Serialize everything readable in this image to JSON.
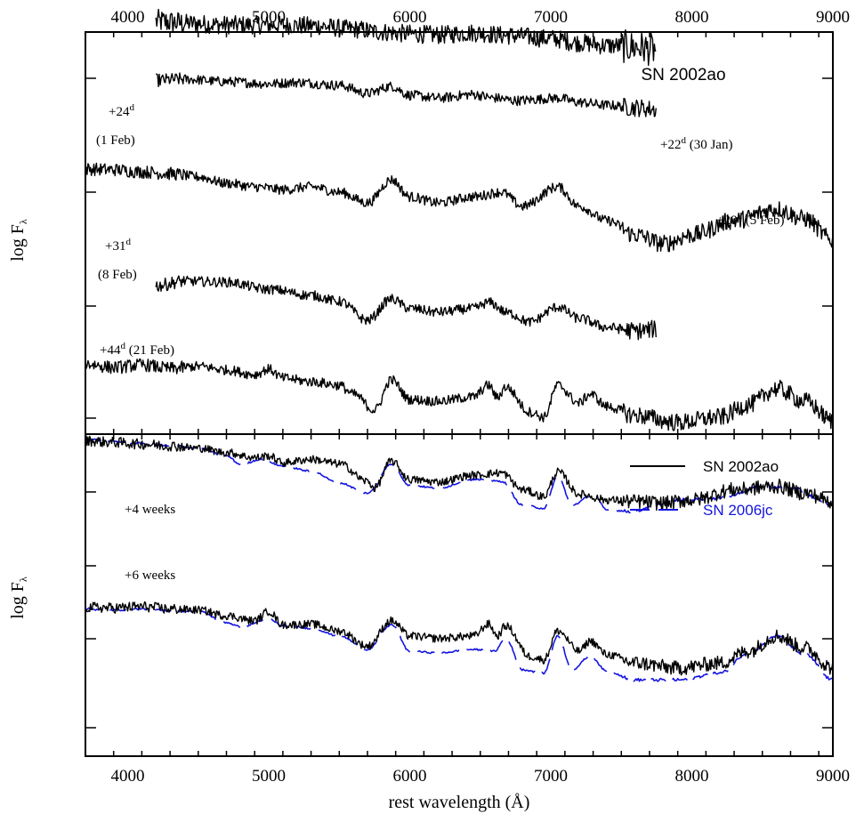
{
  "chart_data": [
    {
      "type": "line",
      "panel": "top",
      "xlabel": "rest wavelength (Å)",
      "ylabel": "log F",
      "ylabel_sub": "λ",
      "xlim": [
        3700,
        9000
      ],
      "x_ticks": [
        4000,
        5000,
        6000,
        7000,
        8000,
        9000
      ],
      "title": "SN 2002ao",
      "series": [
        {
          "epoch": "+24",
          "sup": "d",
          "date": "(1 Feb)",
          "range": [
            4200,
            7750
          ],
          "points": [
            [
              4200,
              2.6
            ],
            [
              4400,
              2.55
            ],
            [
              4700,
              2.5
            ],
            [
              5000,
              2.5
            ],
            [
              5300,
              2.48
            ],
            [
              5600,
              2.38
            ],
            [
              5800,
              2.3
            ],
            [
              6000,
              2.25
            ],
            [
              6200,
              2.22
            ],
            [
              6450,
              2.28
            ],
            [
              6700,
              2.2
            ],
            [
              7000,
              2.12
            ],
            [
              7200,
              2.0
            ],
            [
              7400,
              1.92
            ],
            [
              7600,
              1.88
            ],
            [
              7750,
              1.8
            ]
          ]
        },
        {
          "epoch": "+22",
          "sup": "d",
          "date": "(30 Jan)",
          "range": [
            4200,
            7750
          ],
          "points": [
            [
              4200,
              2.12
            ],
            [
              4400,
              2.15
            ],
            [
              4700,
              2.08
            ],
            [
              5000,
              2.02
            ],
            [
              5200,
              2.06
            ],
            [
              5500,
              1.98
            ],
            [
              5700,
              1.75
            ],
            [
              5870,
              1.95
            ],
            [
              6000,
              1.7
            ],
            [
              6200,
              1.62
            ],
            [
              6450,
              1.72
            ],
            [
              6600,
              1.62
            ],
            [
              6750,
              1.55
            ],
            [
              7050,
              1.62
            ],
            [
              7200,
              1.5
            ],
            [
              7400,
              1.42
            ],
            [
              7600,
              1.35
            ],
            [
              7750,
              1.3
            ]
          ]
        },
        {
          "epoch": "+28",
          "sup": "d",
          "date": "(5 Feb)",
          "range": [
            3700,
            9000
          ],
          "points": [
            [
              3700,
              1.0
            ],
            [
              3900,
              0.98
            ],
            [
              4100,
              0.92
            ],
            [
              4300,
              0.87
            ],
            [
              4500,
              0.78
            ],
            [
              4700,
              0.6
            ],
            [
              4900,
              0.5
            ],
            [
              5100,
              0.42
            ],
            [
              5300,
              0.5
            ],
            [
              5500,
              0.35
            ],
            [
              5700,
              0.05
            ],
            [
              5870,
              0.7
            ],
            [
              6000,
              0.22
            ],
            [
              6200,
              0.05
            ],
            [
              6450,
              0.22
            ],
            [
              6650,
              0.35
            ],
            [
              6800,
              -0.05
            ],
            [
              7050,
              0.5
            ],
            [
              7200,
              -0.05
            ],
            [
              7400,
              -0.45
            ],
            [
              7600,
              -0.85
            ],
            [
              7800,
              -1.1
            ],
            [
              8000,
              -0.85
            ],
            [
              8300,
              -0.45
            ],
            [
              8600,
              -0.12
            ],
            [
              8800,
              -0.4
            ],
            [
              9000,
              -1.0
            ]
          ]
        },
        {
          "epoch": "+31",
          "sup": "d",
          "date": "(8 Feb)",
          "range": [
            4200,
            7750
          ],
          "points": [
            [
              4200,
              -0.08
            ],
            [
              4400,
              0.05
            ],
            [
              4700,
              0.02
            ],
            [
              5000,
              -0.18
            ],
            [
              5300,
              -0.35
            ],
            [
              5500,
              -0.52
            ],
            [
              5700,
              -1.05
            ],
            [
              5870,
              -0.45
            ],
            [
              6000,
              -0.72
            ],
            [
              6200,
              -0.82
            ],
            [
              6450,
              -0.72
            ],
            [
              6560,
              -0.55
            ],
            [
              6700,
              -0.85
            ],
            [
              6850,
              -1.1
            ],
            [
              7050,
              -0.68
            ],
            [
              7200,
              -1.0
            ],
            [
              7400,
              -1.25
            ],
            [
              7600,
              -1.35
            ],
            [
              7750,
              -1.3
            ]
          ]
        },
        {
          "epoch": "+44",
          "sup": "d",
          "date": "(21 Feb)",
          "range": [
            3700,
            9000
          ],
          "points": [
            [
              3700,
              -0.85
            ],
            [
              3900,
              -0.95
            ],
            [
              4100,
              -0.88
            ],
            [
              4300,
              -0.98
            ],
            [
              4500,
              -0.92
            ],
            [
              4700,
              -1.02
            ],
            [
              4900,
              -1.15
            ],
            [
              5000,
              -1.0
            ],
            [
              5100,
              -1.25
            ],
            [
              5300,
              -1.35
            ],
            [
              5500,
              -1.45
            ],
            [
              5600,
              -1.7
            ],
            [
              5750,
              -2.15
            ],
            [
              5870,
              -1.3
            ],
            [
              6000,
              -1.85
            ],
            [
              6200,
              -1.9
            ],
            [
              6450,
              -1.78
            ],
            [
              6560,
              -1.45
            ],
            [
              6620,
              -1.8
            ],
            [
              6680,
              -1.5
            ],
            [
              6850,
              -2.2
            ],
            [
              6950,
              -2.35
            ],
            [
              7050,
              -1.45
            ],
            [
              7200,
              -1.95
            ],
            [
              7280,
              -1.7
            ],
            [
              7400,
              -2.05
            ],
            [
              7600,
              -2.3
            ],
            [
              7900,
              -2.5
            ],
            [
              8200,
              -2.35
            ],
            [
              8400,
              -2.0
            ],
            [
              8600,
              -1.55
            ],
            [
              8800,
              -1.9
            ],
            [
              9000,
              -2.45
            ]
          ]
        }
      ]
    },
    {
      "type": "line",
      "panel": "bottom",
      "xlabel": "rest wavelength (Å)",
      "ylabel": "log F",
      "ylabel_sub": "λ",
      "xlim": [
        3700,
        9000
      ],
      "x_ticks": [
        4000,
        5000,
        6000,
        7000,
        8000,
        9000
      ],
      "legend": [
        {
          "name": "SN 2002ao",
          "color": "#000000",
          "dash": "solid"
        },
        {
          "name": "SN 2006jc",
          "color": "#1515e0",
          "dash": "dashed"
        }
      ],
      "labels": [
        "+4 weeks",
        "+6 weeks"
      ],
      "series": [
        {
          "name": "SN 2002ao",
          "group": "+4 weeks",
          "color": "#000000",
          "points": [
            [
              3700,
              1.7
            ],
            [
              3900,
              1.65
            ],
            [
              4100,
              1.6
            ],
            [
              4300,
              1.55
            ],
            [
              4500,
              1.48
            ],
            [
              4700,
              1.35
            ],
            [
              4900,
              1.2
            ],
            [
              5000,
              1.25
            ],
            [
              5100,
              1.05
            ],
            [
              5300,
              1.15
            ],
            [
              5500,
              1.02
            ],
            [
              5700,
              0.5
            ],
            [
              5750,
              0.3
            ],
            [
              5870,
              1.1
            ],
            [
              6000,
              0.55
            ],
            [
              6200,
              0.48
            ],
            [
              6450,
              0.68
            ],
            [
              6650,
              0.75
            ],
            [
              6800,
              0.25
            ],
            [
              6950,
              0.05
            ],
            [
              7050,
              0.78
            ],
            [
              7200,
              0.12
            ],
            [
              7400,
              -0.05
            ],
            [
              7600,
              -0.1
            ],
            [
              7800,
              -0.15
            ],
            [
              8000,
              -0.05
            ],
            [
              8300,
              0.25
            ],
            [
              8600,
              0.35
            ],
            [
              8800,
              0.15
            ],
            [
              9000,
              -0.1
            ]
          ]
        },
        {
          "name": "SN 2006jc",
          "group": "+4 weeks",
          "color": "#1515e0",
          "points": [
            [
              3700,
              1.75
            ],
            [
              3900,
              1.68
            ],
            [
              4100,
              1.62
            ],
            [
              4300,
              1.55
            ],
            [
              4500,
              1.48
            ],
            [
              4700,
              1.25
            ],
            [
              4800,
              1.0
            ],
            [
              4950,
              1.15
            ],
            [
              5100,
              0.95
            ],
            [
              5300,
              0.8
            ],
            [
              5500,
              0.45
            ],
            [
              5700,
              0.15
            ],
            [
              5870,
              1.0
            ],
            [
              6000,
              0.38
            ],
            [
              6200,
              0.3
            ],
            [
              6450,
              0.55
            ],
            [
              6650,
              0.5
            ],
            [
              6800,
              -0.2
            ],
            [
              6950,
              -0.3
            ],
            [
              7050,
              0.65
            ],
            [
              7150,
              -0.2
            ],
            [
              7300,
              0.1
            ],
            [
              7400,
              -0.35
            ],
            [
              7600,
              -0.4
            ],
            [
              7700,
              -0.25
            ],
            [
              7900,
              -0.05
            ],
            [
              8200,
              0.0
            ],
            [
              8500,
              0.35
            ],
            [
              8700,
              0.3
            ],
            [
              9000,
              -0.2
            ]
          ]
        },
        {
          "name": "SN 2002ao",
          "group": "+6 weeks",
          "color": "#000000",
          "points": [
            [
              3700,
              -0.2
            ],
            [
              3900,
              -0.22
            ],
            [
              4100,
              -0.18
            ],
            [
              4300,
              -0.25
            ],
            [
              4500,
              -0.28
            ],
            [
              4700,
              -0.45
            ],
            [
              4900,
              -0.6
            ],
            [
              5000,
              -0.32
            ],
            [
              5100,
              -0.72
            ],
            [
              5300,
              -0.7
            ],
            [
              5500,
              -0.9
            ],
            [
              5700,
              -1.35
            ],
            [
              5870,
              -0.6
            ],
            [
              6000,
              -1.05
            ],
            [
              6200,
              -1.12
            ],
            [
              6450,
              -1.05
            ],
            [
              6560,
              -0.7
            ],
            [
              6620,
              -1.05
            ],
            [
              6680,
              -0.75
            ],
            [
              6850,
              -1.65
            ],
            [
              6950,
              -1.75
            ],
            [
              7050,
              -0.9
            ],
            [
              7200,
              -1.5
            ],
            [
              7280,
              -1.2
            ],
            [
              7400,
              -1.6
            ],
            [
              7600,
              -1.85
            ],
            [
              7900,
              -2.0
            ],
            [
              8200,
              -1.85
            ],
            [
              8400,
              -1.5
            ],
            [
              8600,
              -1.05
            ],
            [
              8800,
              -1.4
            ],
            [
              9000,
              -2.0
            ]
          ]
        },
        {
          "name": "SN 2006jc",
          "group": "+6 weeks",
          "color": "#1515e0",
          "points": [
            [
              3700,
              -0.25
            ],
            [
              3900,
              -0.28
            ],
            [
              4100,
              -0.25
            ],
            [
              4300,
              -0.3
            ],
            [
              4500,
              -0.32
            ],
            [
              4700,
              -0.65
            ],
            [
              4800,
              -0.78
            ],
            [
              5000,
              -0.55
            ],
            [
              5100,
              -0.75
            ],
            [
              5300,
              -0.82
            ],
            [
              5500,
              -1.05
            ],
            [
              5700,
              -1.45
            ],
            [
              5870,
              -0.72
            ],
            [
              6000,
              -1.5
            ],
            [
              6200,
              -1.55
            ],
            [
              6450,
              -1.45
            ],
            [
              6600,
              -1.5
            ],
            [
              6680,
              -1.12
            ],
            [
              6800,
              -2.05
            ],
            [
              6950,
              -2.15
            ],
            [
              7050,
              -1.05
            ],
            [
              7150,
              -2.05
            ],
            [
              7280,
              -1.65
            ],
            [
              7400,
              -2.1
            ],
            [
              7600,
              -2.35
            ],
            [
              7900,
              -2.35
            ],
            [
              8200,
              -2.15
            ],
            [
              8400,
              -1.55
            ],
            [
              8600,
              -1.05
            ],
            [
              8800,
              -1.6
            ],
            [
              9000,
              -2.35
            ]
          ]
        }
      ]
    }
  ]
}
